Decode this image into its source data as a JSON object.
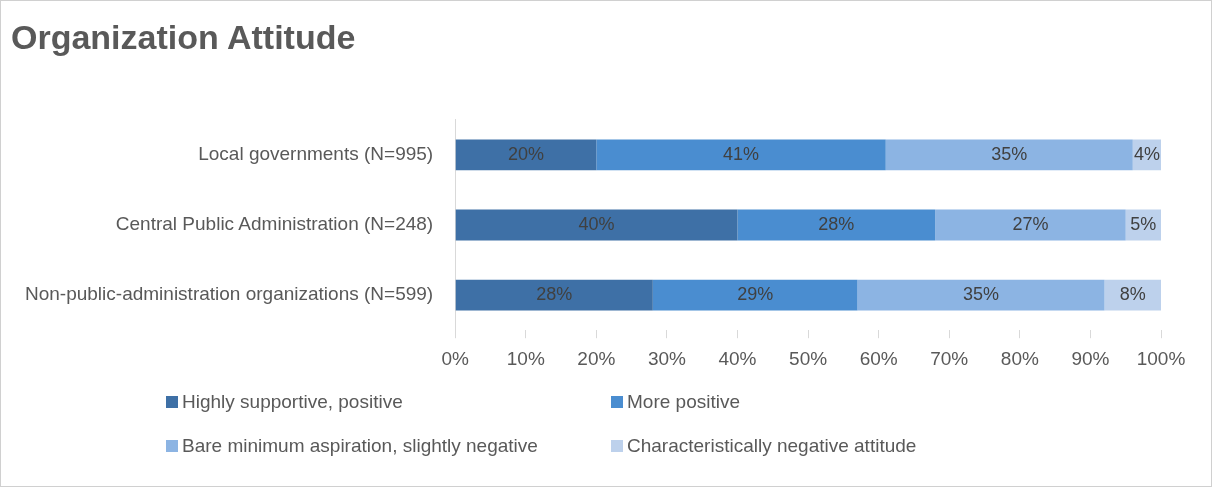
{
  "chart_data": {
    "type": "bar",
    "title": "Organization Attitude",
    "orientation": "horizontal",
    "stacked": true,
    "categories": [
      "Local governments (N=995)",
      "Central Public Administration (N=248)",
      "Non-public-administration organizations (N=599)"
    ],
    "series": [
      {
        "name": "Highly supportive, positive",
        "color": "#3e70a6",
        "values": [
          20,
          40,
          28
        ],
        "value_labels": [
          "20%",
          "40%",
          "28%"
        ]
      },
      {
        "name": "More positive",
        "color": "#4a8dd0",
        "values": [
          41,
          28,
          29
        ],
        "value_labels": [
          "41%",
          "28%",
          "29%"
        ]
      },
      {
        "name": "Bare minimum aspiration, slightly negative",
        "color": "#8cb4e3",
        "values": [
          35,
          27,
          35
        ],
        "value_labels": [
          "35%",
          "27%",
          "35%"
        ]
      },
      {
        "name": "Characteristically negative attitude",
        "color": "#bdd1ec",
        "values": [
          4,
          5,
          8
        ],
        "value_labels": [
          "4%",
          "5%",
          "8%"
        ]
      }
    ],
    "xlim": [
      0,
      100
    ],
    "xticks": [
      {
        "value": 0,
        "label": "0%"
      },
      {
        "value": 10,
        "label": "10%"
      },
      {
        "value": 20,
        "label": "20%"
      },
      {
        "value": 30,
        "label": "30%"
      },
      {
        "value": 40,
        "label": "40%"
      },
      {
        "value": 50,
        "label": "50%"
      },
      {
        "value": 60,
        "label": "60%"
      },
      {
        "value": 70,
        "label": "70%"
      },
      {
        "value": 80,
        "label": "80%"
      },
      {
        "value": 90,
        "label": "90%"
      },
      {
        "value": 100,
        "label": "100%"
      }
    ],
    "legend": "bottom",
    "grid": false
  }
}
